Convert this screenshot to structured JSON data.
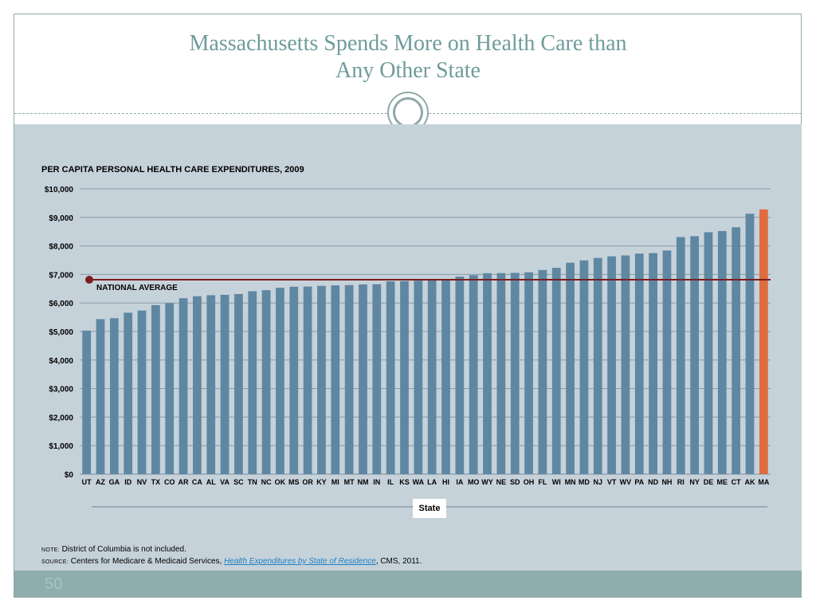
{
  "slide": {
    "title_line1": "Massachusetts Spends More on Health Care than",
    "title_line2": "Any Other State",
    "page_number": "50"
  },
  "colors": {
    "bar": "#5f87a1",
    "highlight_bar": "#e06b3c",
    "average_line": "#7a1f1f",
    "grid": "#8a9aa6"
  },
  "notes": {
    "note_label": "NOTE:",
    "note_text": "District of Columbia is not included.",
    "source_label": "SOURCE:",
    "source_text_pre": "Centers for Medicare & Medicaid Services,",
    "source_link": "Health Expenditures by State of Residence",
    "source_text_post": ", CMS, 2011."
  },
  "chart_data": {
    "type": "bar",
    "title": "PER CAPITA PERSONAL HEALTH CARE EXPENDITURES, 2009",
    "xlabel": "State",
    "ylabel": "",
    "ylim": [
      0,
      10000
    ],
    "y_ticks": [
      0,
      1000,
      2000,
      3000,
      4000,
      5000,
      6000,
      7000,
      8000,
      9000,
      10000
    ],
    "y_tick_labels": [
      "$0",
      "$1,000",
      "$2,000",
      "$3,000",
      "$4,000",
      "$5,000",
      "$6,000",
      "$7,000",
      "$8,000",
      "$9,000",
      "$10,000"
    ],
    "grid": true,
    "reference_line": {
      "label": "NATIONAL AVERAGE",
      "value": 6815
    },
    "highlight_category": "MA",
    "categories": [
      "UT",
      "AZ",
      "GA",
      "ID",
      "NV",
      "TX",
      "CO",
      "AR",
      "CA",
      "AL",
      "VA",
      "SC",
      "TN",
      "NC",
      "OK",
      "MS",
      "OR",
      "KY",
      "MI",
      "MT",
      "NM",
      "IN",
      "IL",
      "KS",
      "WA",
      "LA",
      "HI",
      "IA",
      "MO",
      "WY",
      "NE",
      "SD",
      "OH",
      "FL",
      "WI",
      "MN",
      "MD",
      "NJ",
      "VT",
      "WV",
      "PA",
      "ND",
      "NH",
      "RI",
      "NY",
      "DE",
      "ME",
      "CT",
      "AK",
      "MA"
    ],
    "values": [
      5031,
      5434,
      5467,
      5658,
      5735,
      5924,
      5994,
      6167,
      6238,
      6272,
      6286,
      6313,
      6411,
      6449,
      6533,
      6571,
      6574,
      6600,
      6618,
      6627,
      6651,
      6656,
      6760,
      6765,
      6782,
      6812,
      6833,
      6925,
      6975,
      7043,
      7048,
      7055,
      7076,
      7156,
      7233,
      7409,
      7492,
      7578,
      7635,
      7667,
      7730,
      7749,
      7839,
      8309,
      8341,
      8480,
      8521,
      8654,
      9128,
      9278
    ]
  }
}
